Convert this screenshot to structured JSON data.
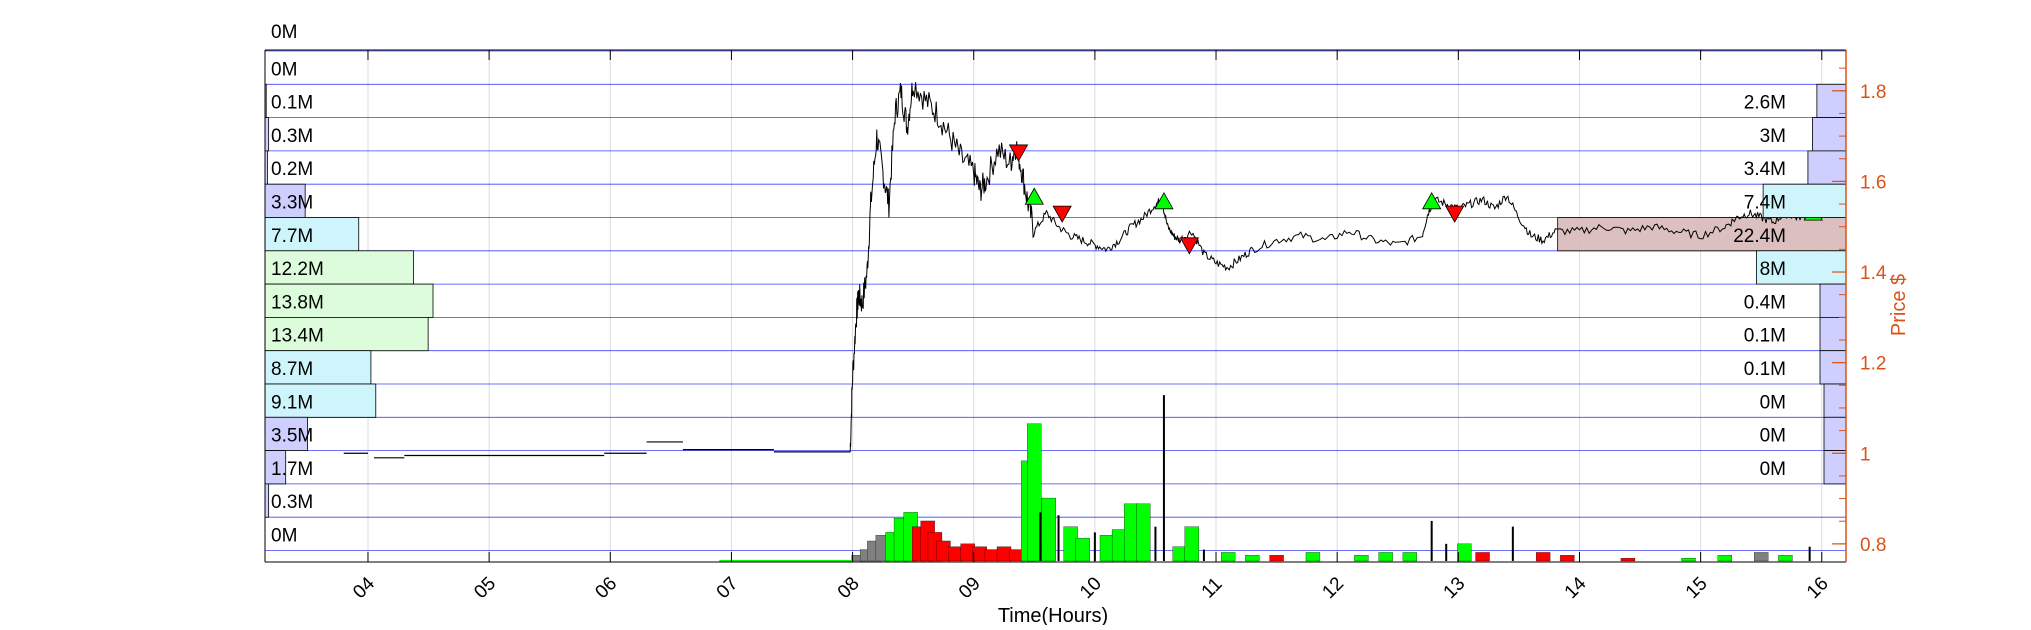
{
  "chart_data": {
    "type": "line",
    "xlabel": "Time(Hours)",
    "ylabel": "Price $",
    "x_tick_labels": [
      "04",
      "05",
      "06",
      "07",
      "08",
      "09",
      "10",
      "11",
      "12",
      "13",
      "14",
      "15",
      "16"
    ],
    "xlim": [
      3.15,
      16.2
    ],
    "y_tick_labels": [
      "0.8",
      "1",
      "1.2",
      "1.4",
      "1.6",
      "1.8"
    ],
    "ylim": [
      0.76,
      1.89
    ],
    "grid": true,
    "colors": {
      "axis": "#000000",
      "price_axis": "#d95319",
      "price_line": "#000000",
      "grid_major": "#0000ff",
      "grid_minor": "#dcdcdc",
      "buy_marker": "#00ff00",
      "sell_marker": "#ff0000",
      "vol_up": "#00ff00",
      "vol_down": "#ff0000",
      "vol_neutral": "#808080",
      "vol_spike": "#000000",
      "profile_low": "#cfcfff",
      "profile_mid": "#cdf5fb",
      "profile_high": "#dcfcdc",
      "value_area": "#d8b9b9"
    },
    "price_series": {
      "name": "Price",
      "x": [
        3.8,
        4.0,
        4.2,
        4.5,
        5.0,
        5.5,
        5.9,
        6.0,
        6.1,
        6.2,
        6.3,
        6.6,
        7.0,
        7.5,
        7.8,
        7.98,
        8.0,
        8.03,
        8.05,
        8.08,
        8.12,
        8.15,
        8.2,
        8.25,
        8.3,
        8.35,
        8.4,
        8.45,
        8.5,
        8.6,
        8.7,
        8.8,
        8.9,
        9.0,
        9.05,
        9.1,
        9.2,
        9.3,
        9.35,
        9.4,
        9.45,
        9.5,
        9.6,
        9.7,
        9.8,
        9.9,
        10.0,
        10.1,
        10.2,
        10.3,
        10.4,
        10.5,
        10.55,
        10.6,
        10.65,
        10.7,
        10.8,
        10.9,
        11.0,
        11.1,
        11.2,
        11.3,
        11.5,
        11.7,
        11.9,
        12.1,
        12.3,
        12.5,
        12.7,
        12.75,
        12.8,
        12.9,
        13.0,
        13.1,
        13.2,
        13.3,
        13.4,
        13.5,
        13.6,
        13.7,
        13.8,
        14.0,
        14.2,
        14.4,
        14.6,
        14.8,
        15.0,
        15.2,
        15.3,
        15.4,
        15.5,
        15.6,
        15.7,
        15.8,
        15.9,
        16.0,
        16.05
      ],
      "y": [
        1.0,
        0.99,
        0.993,
        0.995,
        0.995,
        0.994,
        0.995,
        1.0,
        0.997,
        1.01,
        1.025,
        1.008,
        1.008,
        1.003,
        1.003,
        1.003,
        1.17,
        1.3,
        1.35,
        1.33,
        1.4,
        1.55,
        1.7,
        1.62,
        1.55,
        1.75,
        1.8,
        1.72,
        1.82,
        1.78,
        1.75,
        1.7,
        1.65,
        1.62,
        1.58,
        1.6,
        1.67,
        1.64,
        1.68,
        1.62,
        1.55,
        1.49,
        1.53,
        1.5,
        1.48,
        1.47,
        1.46,
        1.45,
        1.47,
        1.5,
        1.52,
        1.55,
        1.56,
        1.5,
        1.48,
        1.47,
        1.49,
        1.44,
        1.42,
        1.41,
        1.43,
        1.45,
        1.47,
        1.48,
        1.47,
        1.49,
        1.47,
        1.46,
        1.48,
        1.53,
        1.56,
        1.55,
        1.54,
        1.55,
        1.56,
        1.54,
        1.57,
        1.52,
        1.48,
        1.47,
        1.49,
        1.49,
        1.5,
        1.49,
        1.5,
        1.49,
        1.48,
        1.5,
        1.52,
        1.53,
        1.52,
        1.51,
        1.53,
        1.52,
        1.53,
        1.56,
        1.53
      ]
    },
    "buy_markers": {
      "x": [
        9.5,
        10.57,
        12.78,
        15.93
      ],
      "y": [
        1.565,
        1.555,
        1.555,
        1.53
      ]
    },
    "sell_markers": {
      "x": [
        9.37,
        9.73,
        10.78,
        12.97
      ],
      "y": [
        1.665,
        1.53,
        1.46,
        1.53
      ]
    },
    "volume_bars": [
      {
        "x": 8.05,
        "h": 0.02,
        "c": "neutral"
      },
      {
        "x": 8.12,
        "h": 0.04,
        "c": "neutral"
      },
      {
        "x": 8.18,
        "h": 0.07,
        "c": "neutral"
      },
      {
        "x": 8.25,
        "h": 0.09,
        "c": "neutral"
      },
      {
        "x": 8.33,
        "h": 0.1,
        "c": "up"
      },
      {
        "x": 8.4,
        "h": 0.15,
        "c": "up"
      },
      {
        "x": 8.48,
        "h": 0.17,
        "c": "up"
      },
      {
        "x": 8.55,
        "h": 0.12,
        "c": "down"
      },
      {
        "x": 8.62,
        "h": 0.14,
        "c": "down"
      },
      {
        "x": 8.68,
        "h": 0.1,
        "c": "down"
      },
      {
        "x": 8.75,
        "h": 0.07,
        "c": "down"
      },
      {
        "x": 8.85,
        "h": 0.05,
        "c": "down"
      },
      {
        "x": 8.95,
        "h": 0.06,
        "c": "down"
      },
      {
        "x": 9.05,
        "h": 0.05,
        "c": "down"
      },
      {
        "x": 9.15,
        "h": 0.04,
        "c": "down"
      },
      {
        "x": 9.25,
        "h": 0.05,
        "c": "down"
      },
      {
        "x": 9.35,
        "h": 0.04,
        "c": "down"
      },
      {
        "x": 9.45,
        "h": 0.35,
        "c": "up"
      },
      {
        "x": 9.5,
        "h": 0.48,
        "c": "up"
      },
      {
        "x": 9.55,
        "h": 0.17,
        "c": "spike"
      },
      {
        "x": 9.62,
        "h": 0.22,
        "c": "up"
      },
      {
        "x": 9.7,
        "h": 0.16,
        "c": "spike"
      },
      {
        "x": 9.8,
        "h": 0.12,
        "c": "up"
      },
      {
        "x": 9.9,
        "h": 0.08,
        "c": "up"
      },
      {
        "x": 10.0,
        "h": 0.1,
        "c": "spike"
      },
      {
        "x": 10.1,
        "h": 0.09,
        "c": "up"
      },
      {
        "x": 10.2,
        "h": 0.11,
        "c": "up"
      },
      {
        "x": 10.3,
        "h": 0.2,
        "c": "up"
      },
      {
        "x": 10.4,
        "h": 0.2,
        "c": "up"
      },
      {
        "x": 10.5,
        "h": 0.12,
        "c": "spike"
      },
      {
        "x": 10.57,
        "h": 0.58,
        "c": "spike"
      },
      {
        "x": 10.7,
        "h": 0.05,
        "c": "up"
      },
      {
        "x": 10.8,
        "h": 0.12,
        "c": "up"
      },
      {
        "x": 10.9,
        "h": 0.04,
        "c": "spike"
      },
      {
        "x": 11.1,
        "h": 0.03,
        "c": "up"
      },
      {
        "x": 11.3,
        "h": 0.02,
        "c": "up"
      },
      {
        "x": 11.5,
        "h": 0.02,
        "c": "down"
      },
      {
        "x": 11.8,
        "h": 0.03,
        "c": "up"
      },
      {
        "x": 12.2,
        "h": 0.02,
        "c": "up"
      },
      {
        "x": 12.4,
        "h": 0.03,
        "c": "up"
      },
      {
        "x": 12.6,
        "h": 0.03,
        "c": "up"
      },
      {
        "x": 12.78,
        "h": 0.14,
        "c": "spike"
      },
      {
        "x": 12.9,
        "h": 0.06,
        "c": "spike"
      },
      {
        "x": 13.05,
        "h": 0.06,
        "c": "up"
      },
      {
        "x": 13.2,
        "h": 0.03,
        "c": "down"
      },
      {
        "x": 13.45,
        "h": 0.12,
        "c": "spike"
      },
      {
        "x": 13.7,
        "h": 0.03,
        "c": "down"
      },
      {
        "x": 13.9,
        "h": 0.02,
        "c": "down"
      },
      {
        "x": 14.4,
        "h": 0.01,
        "c": "down"
      },
      {
        "x": 14.9,
        "h": 0.01,
        "c": "up"
      },
      {
        "x": 15.2,
        "h": 0.02,
        "c": "up"
      },
      {
        "x": 15.5,
        "h": 0.03,
        "c": "neutral"
      },
      {
        "x": 15.7,
        "h": 0.02,
        "c": "up"
      },
      {
        "x": 15.9,
        "h": 0.05,
        "c": "spike"
      }
    ],
    "left_profile": [
      {
        "label": "0M",
        "value": 0.0
      },
      {
        "label": "0M",
        "value": 0.0
      },
      {
        "label": "0.1M",
        "value": 0.1
      },
      {
        "label": "0.3M",
        "value": 0.3
      },
      {
        "label": "0.2M",
        "value": 0.2
      },
      {
        "label": "3.3M",
        "value": 3.3
      },
      {
        "label": "7.7M",
        "value": 7.7
      },
      {
        "label": "12.2M",
        "value": 12.2
      },
      {
        "label": "13.8M",
        "value": 13.8
      },
      {
        "label": "13.4M",
        "value": 13.4
      },
      {
        "label": "8.7M",
        "value": 8.7
      },
      {
        "label": "9.1M",
        "value": 9.1
      },
      {
        "label": "3.5M",
        "value": 3.5
      },
      {
        "label": "1.7M",
        "value": 1.7
      },
      {
        "label": "0.3M",
        "value": 0.3
      },
      {
        "label": "0M",
        "value": 0.0
      }
    ],
    "right_profile": [
      {
        "label": "2.6M",
        "value": 2.6
      },
      {
        "label": "3M",
        "value": 3.0
      },
      {
        "label": "3.4M",
        "value": 3.4
      },
      {
        "label": "7.4M",
        "value": 7.4
      },
      {
        "label": "22.4M",
        "value": 22.4
      },
      {
        "label": "8M",
        "value": 8.0
      },
      {
        "label": "0.4M",
        "value": 0.4
      },
      {
        "label": "0.1M",
        "value": 0.1
      },
      {
        "label": "0.1M",
        "value": 0.1
      },
      {
        "label": "0M",
        "value": 0.0
      },
      {
        "label": "0M",
        "value": 0.0
      },
      {
        "label": "0M",
        "value": 0.0
      }
    ],
    "value_area": {
      "x_start": 13.82,
      "x_end": 16.2
    }
  }
}
